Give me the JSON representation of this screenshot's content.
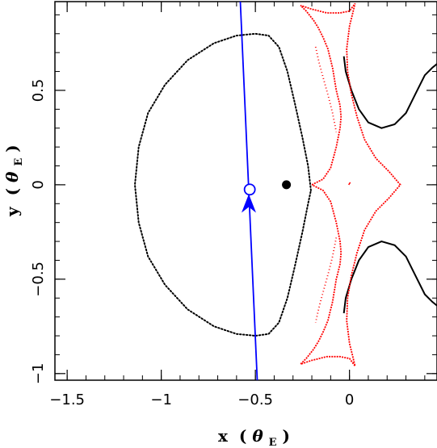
{
  "chart_data": {
    "type": "scatter",
    "title": "",
    "xlabel": {
      "main": "x",
      "paren_open": "(",
      "theta": "θ",
      "sub": "E",
      "paren_close": ")"
    },
    "ylabel": {
      "main": "y",
      "paren_open": "(",
      "theta": "θ",
      "sub": "E",
      "paren_close": ")"
    },
    "xlim": [
      -1.565,
      0.465
    ],
    "ylim": [
      -1.035,
      0.97
    ],
    "x_ticks_major": [
      -1.5,
      -1,
      -0.5,
      0
    ],
    "x_tick_labels": [
      "−1.5",
      "−1",
      "−0.5",
      "0"
    ],
    "y_ticks_major": [
      -1,
      -0.5,
      0,
      0.5
    ],
    "y_tick_labels": [
      "−1",
      "−0.5",
      "0",
      "0.5"
    ],
    "minor_tick_step": 0.1,
    "grid": false,
    "lens_point": {
      "x": -0.335,
      "y": 0.0,
      "color": "#000000"
    },
    "source_marker": {
      "x": -0.53,
      "y": -0.025,
      "color": "#0000ff"
    },
    "source_trajectory": {
      "color": "#0000ff",
      "points": [
        [
          -0.58,
          0.97
        ],
        [
          -0.49,
          -1.035
        ]
      ],
      "arrow_at": [
        -0.535,
        -0.105
      ],
      "direction": "down"
    },
    "critical_curve": {
      "style": "dotted",
      "color": "#000000",
      "points": [
        [
          -0.205,
          -0.03
        ],
        [
          -0.22,
          0.1
        ],
        [
          -0.25,
          0.25
        ],
        [
          -0.29,
          0.43
        ],
        [
          -0.33,
          0.6
        ],
        [
          -0.375,
          0.73
        ],
        [
          -0.43,
          0.79
        ],
        [
          -0.5,
          0.8
        ],
        [
          -0.6,
          0.79
        ],
        [
          -0.72,
          0.75
        ],
        [
          -0.86,
          0.66
        ],
        [
          -0.98,
          0.53
        ],
        [
          -1.07,
          0.38
        ],
        [
          -1.12,
          0.2
        ],
        [
          -1.14,
          0.0
        ],
        [
          -1.12,
          -0.2
        ],
        [
          -1.07,
          -0.38
        ],
        [
          -0.98,
          -0.53
        ],
        [
          -0.86,
          -0.66
        ],
        [
          -0.72,
          -0.75
        ],
        [
          -0.6,
          -0.79
        ],
        [
          -0.5,
          -0.8
        ],
        [
          -0.43,
          -0.79
        ],
        [
          -0.375,
          -0.73
        ],
        [
          -0.33,
          -0.6
        ],
        [
          -0.29,
          -0.43
        ],
        [
          -0.25,
          -0.25
        ],
        [
          -0.22,
          -0.1
        ],
        [
          -0.205,
          -0.03
        ]
      ],
      "outer_arcs": [
        [
          [
            -0.03,
            0.68
          ],
          [
            -0.02,
            0.6
          ],
          [
            0.01,
            0.5
          ],
          [
            0.05,
            0.4
          ],
          [
            0.1,
            0.33
          ],
          [
            0.17,
            0.3
          ],
          [
            0.24,
            0.32
          ],
          [
            0.3,
            0.38
          ],
          [
            0.35,
            0.48
          ],
          [
            0.4,
            0.58
          ],
          [
            0.44,
            0.62
          ],
          [
            0.465,
            0.64
          ]
        ],
        [
          [
            -0.03,
            -0.68
          ],
          [
            -0.02,
            -0.6
          ],
          [
            0.01,
            -0.5
          ],
          [
            0.05,
            -0.4
          ],
          [
            0.1,
            -0.33
          ],
          [
            0.17,
            -0.3
          ],
          [
            0.24,
            -0.32
          ],
          [
            0.3,
            -0.38
          ],
          [
            0.35,
            -0.48
          ],
          [
            0.4,
            -0.58
          ],
          [
            0.44,
            -0.62
          ],
          [
            0.465,
            -0.64
          ]
        ]
      ]
    },
    "caustics": {
      "color": "#ff0000",
      "central": [
        [
          -0.2,
          0.0
        ],
        [
          -0.14,
          0.03
        ],
        [
          -0.1,
          0.09
        ],
        [
          -0.07,
          0.2
        ],
        [
          -0.05,
          0.3
        ],
        [
          -0.045,
          0.36
        ],
        [
          -0.05,
          0.42
        ],
        [
          -0.07,
          0.5
        ],
        [
          -0.09,
          0.62
        ],
        [
          -0.115,
          0.72
        ],
        [
          -0.14,
          0.78
        ],
        [
          -0.165,
          0.83
        ],
        [
          -0.19,
          0.87
        ],
        [
          -0.23,
          0.92
        ],
        [
          -0.26,
          0.95
        ],
        [
          -0.2,
          0.93
        ],
        [
          -0.12,
          0.91
        ],
        [
          -0.05,
          0.91
        ],
        [
          0.0,
          0.92
        ],
        [
          0.03,
          0.96
        ],
        [
          0.0,
          0.84
        ],
        [
          -0.015,
          0.72
        ],
        [
          -0.01,
          0.6
        ],
        [
          0.01,
          0.48
        ],
        [
          0.04,
          0.36
        ],
        [
          0.08,
          0.24
        ],
        [
          0.14,
          0.14
        ],
        [
          0.21,
          0.07
        ],
        [
          0.27,
          0.0
        ],
        [
          0.21,
          -0.07
        ],
        [
          0.14,
          -0.14
        ],
        [
          0.08,
          -0.24
        ],
        [
          0.04,
          -0.36
        ],
        [
          0.01,
          -0.48
        ],
        [
          -0.01,
          -0.6
        ],
        [
          -0.015,
          -0.72
        ],
        [
          0.0,
          -0.84
        ],
        [
          0.03,
          -0.96
        ],
        [
          0.0,
          -0.92
        ],
        [
          -0.05,
          -0.91
        ],
        [
          -0.12,
          -0.91
        ],
        [
          -0.2,
          -0.93
        ],
        [
          -0.26,
          -0.95
        ],
        [
          -0.23,
          -0.92
        ],
        [
          -0.19,
          -0.87
        ],
        [
          -0.165,
          -0.83
        ],
        [
          -0.14,
          -0.78
        ],
        [
          -0.115,
          -0.72
        ],
        [
          -0.09,
          -0.62
        ],
        [
          -0.07,
          -0.5
        ],
        [
          -0.05,
          -0.42
        ],
        [
          -0.045,
          -0.36
        ],
        [
          -0.05,
          -0.3
        ],
        [
          -0.07,
          -0.2
        ],
        [
          -0.1,
          -0.09
        ],
        [
          -0.14,
          -0.03
        ],
        [
          -0.2,
          0.0
        ]
      ],
      "inner_dotted": [
        [
          -0.18,
          0.73
        ],
        [
          -0.16,
          0.64
        ],
        [
          -0.135,
          0.55
        ],
        [
          -0.11,
          0.46
        ],
        [
          -0.09,
          0.38
        ],
        [
          -0.07,
          0.28
        ],
        [
          -0.07,
          -0.28
        ],
        [
          -0.09,
          -0.38
        ],
        [
          -0.11,
          -0.46
        ],
        [
          -0.135,
          -0.55
        ],
        [
          -0.16,
          -0.64
        ],
        [
          -0.18,
          -0.73
        ]
      ],
      "small_tick": {
        "x": 0.0,
        "y": 0.0
      }
    }
  }
}
